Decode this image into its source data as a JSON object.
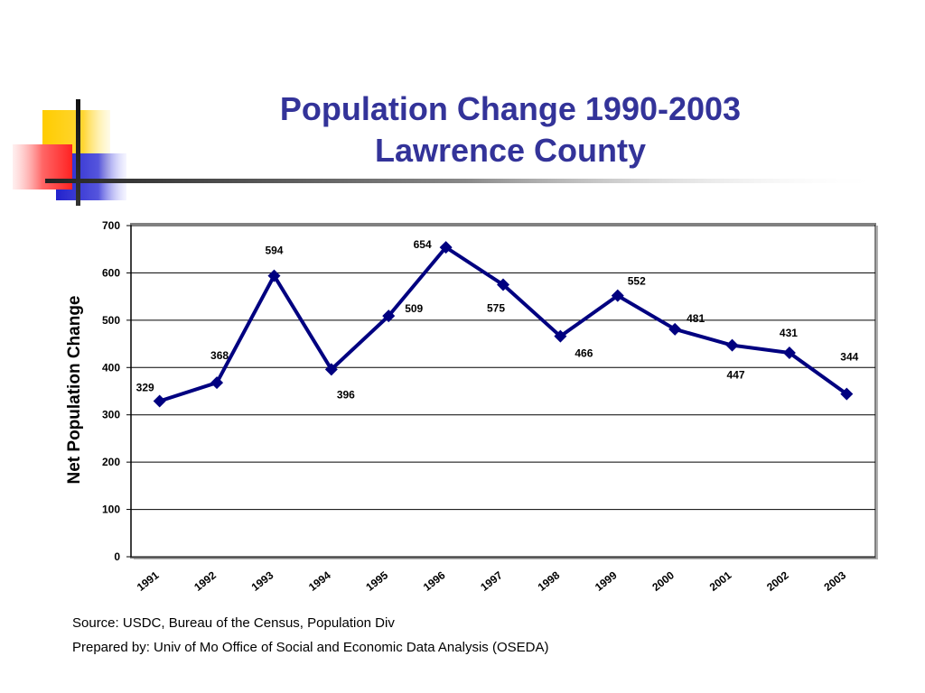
{
  "title": {
    "line1": "Population Change 1990-2003",
    "line2": "Lawrence County"
  },
  "footer": {
    "source": "Source: USDC, Bureau of the Census, Population Div",
    "prepared_by": "Prepared by: Univ of Mo Office of Social and Economic Data Analysis (OSEDA)"
  },
  "colors": {
    "title": "#333399",
    "line": "#000080",
    "accent_yellow": "#ffcc00",
    "accent_red": "#ff3333",
    "accent_blue": "#3333cc"
  },
  "chart_data": {
    "type": "line",
    "title": "",
    "xlabel": "",
    "ylabel": "Net Population Change",
    "categories": [
      "1991",
      "1992",
      "1993",
      "1994",
      "1995",
      "1996",
      "1997",
      "1998",
      "1999",
      "2000",
      "2001",
      "2002",
      "2003"
    ],
    "values": [
      329,
      368,
      594,
      396,
      509,
      654,
      575,
      466,
      552,
      481,
      447,
      431,
      344
    ],
    "ylim": [
      0,
      700
    ],
    "yticks": [
      0,
      100,
      200,
      300,
      400,
      500,
      600,
      700
    ],
    "grid": true,
    "legend": "none",
    "marker": "diamond"
  }
}
